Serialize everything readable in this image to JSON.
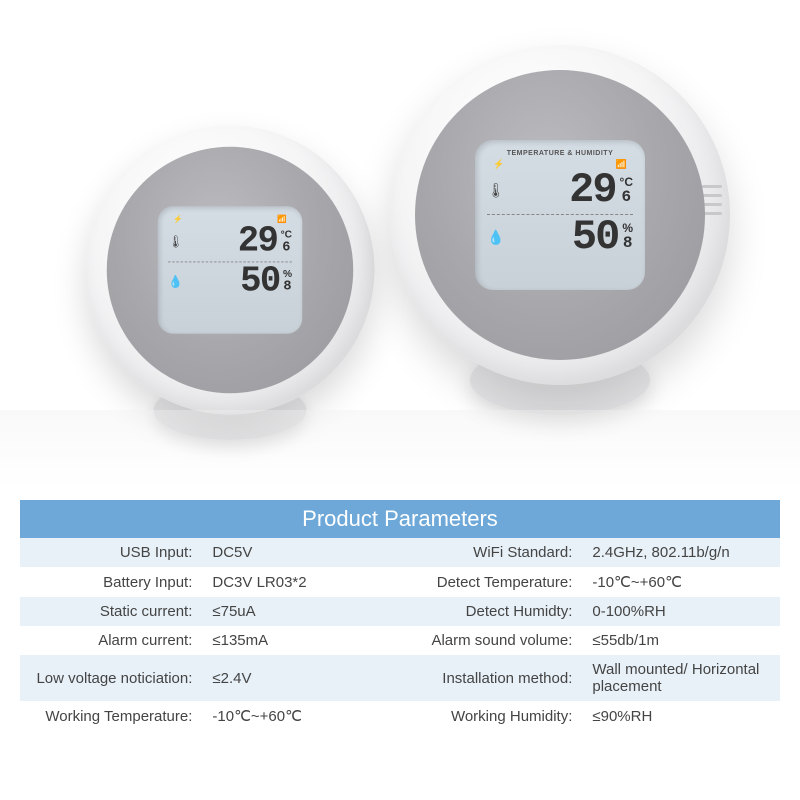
{
  "device": {
    "lcd_header": "TEMPERATURE & HUMIDITY",
    "temp_value": "29",
    "temp_decimal": "6",
    "temp_unit": "°C",
    "humidity_value": "50",
    "humidity_decimal": "8",
    "humidity_unit": "%"
  },
  "table": {
    "title": "Product Parameters",
    "header_bg": "#6da8d8",
    "row_odd_bg": "#e8f1f8",
    "row_even_bg": "#ffffff",
    "text_color": "#444444",
    "rows": [
      {
        "l1": "USB Input:",
        "v1": "DC5V",
        "l2": "WiFi Standard:",
        "v2": "2.4GHz, 802.11b/g/n"
      },
      {
        "l1": "Battery Input:",
        "v1": "DC3V LR03*2",
        "l2": "Detect Temperature:",
        "v2": "-10℃~+60℃"
      },
      {
        "l1": "Static current:",
        "v1": "≤75uA",
        "l2": "Detect Humidty:",
        "v2": "0-100%RH"
      },
      {
        "l1": "Alarm current:",
        "v1": "≤135mA",
        "l2": "Alarm sound volume:",
        "v2": "≤55db/1m"
      },
      {
        "l1": "Low voltage noticiation:",
        "v1": "≤2.4V",
        "l2": "Installation method:",
        "v2": "Wall mounted/ Horizontal placement"
      },
      {
        "l1": "Working Temperature:",
        "v1": "-10℃~+60℃",
        "l2": "Working Humidity:",
        "v2": "≤90%RH"
      }
    ]
  }
}
